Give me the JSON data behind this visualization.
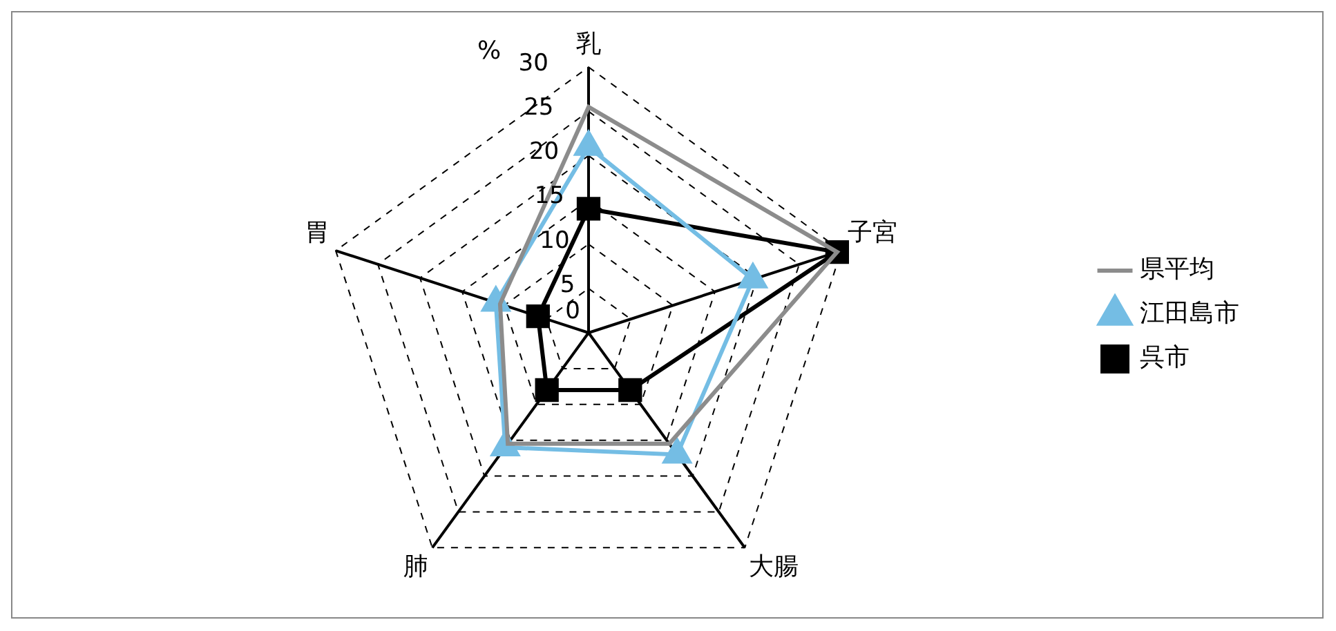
{
  "chart_data": {
    "type": "radar",
    "ylabel": "%",
    "categories": [
      "乳",
      "子宮",
      "大腸",
      "肺",
      "胃"
    ],
    "series": [
      {
        "name": "県平均",
        "color": "#8c8c8c",
        "marker": "none",
        "values": [
          25.5,
          29.5,
          15.5,
          15.5,
          10.5
        ]
      },
      {
        "name": "江田島市",
        "color": "#74bde4",
        "marker": "triangle",
        "values": [
          21,
          19.5,
          17,
          16,
          11
        ]
      },
      {
        "name": "呉市",
        "color": "#000000",
        "marker": "square",
        "values": [
          14,
          29.5,
          8,
          8,
          6
        ]
      }
    ],
    "ylim": [
      0,
      30
    ],
    "yticks": [
      0,
      5,
      10,
      15,
      20,
      25,
      30
    ],
    "grid": true,
    "legend": "right"
  }
}
